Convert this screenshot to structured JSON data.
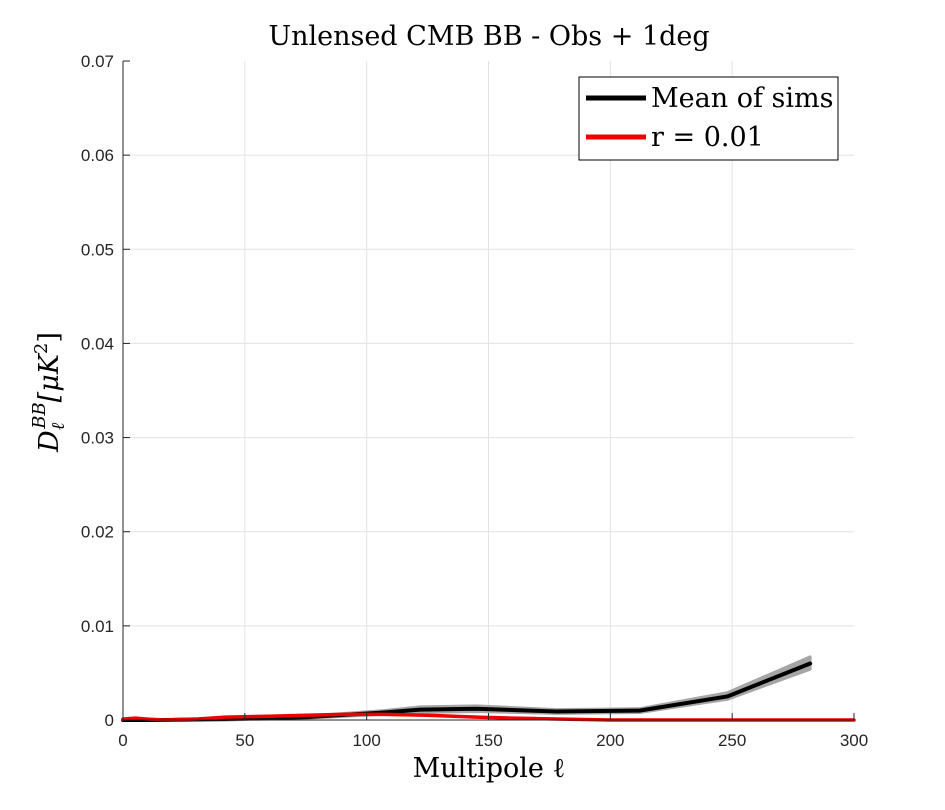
{
  "chart_data": {
    "type": "line",
    "title": "Unlensed CMB BB - Obs + 1deg",
    "xlabel": "Multipole ℓ",
    "ylabel": {
      "main": "D",
      "superscript": "BB",
      "subscript": "ℓ",
      "unit": "[μK",
      "unit_power": "2",
      "unit_close": "]"
    },
    "xlim": [
      0,
      300
    ],
    "ylim": [
      0,
      0.07
    ],
    "x_ticks": [
      0,
      50,
      100,
      150,
      200,
      250,
      300
    ],
    "x_tick_labels": [
      "0",
      "50",
      "100",
      "150",
      "200",
      "250",
      "300"
    ],
    "y_ticks": [
      0,
      0.01,
      0.02,
      0.03,
      0.04,
      0.05,
      0.06,
      0.07
    ],
    "y_tick_labels": [
      "0",
      "0.01",
      "0.02",
      "0.03",
      "0.04",
      "0.05",
      "0.06",
      "0.07"
    ],
    "grid": true,
    "legend_position": "top-right",
    "series": [
      {
        "name": "Mean of sims",
        "color": "#000000",
        "band_color": "#a6a6a6",
        "x": [
          0,
          5,
          17,
          42,
          75,
          107,
          122,
          145,
          178,
          212,
          248,
          282
        ],
        "y": [
          0.0,
          0.0,
          0.0,
          0.0001,
          0.0003,
          0.0008,
          0.0011,
          0.0012,
          0.0009,
          0.001,
          0.0025,
          0.006
        ],
        "band_lower": [
          0.0,
          0.0,
          0.0,
          0.0,
          0.0002,
          0.0006,
          0.0008,
          0.0009,
          0.0007,
          0.0008,
          0.0022,
          0.0054
        ],
        "band_upper": [
          0.0,
          0.0,
          0.0,
          0.0002,
          0.0004,
          0.001,
          0.0014,
          0.0015,
          0.0011,
          0.0012,
          0.0029,
          0.0067
        ]
      },
      {
        "name": "r = 0.01",
        "color": "#ee0000",
        "x": [
          0,
          5,
          10,
          17,
          30,
          42,
          60,
          75,
          90,
          107,
          125,
          145,
          160,
          178,
          200,
          212,
          230,
          248,
          265,
          282,
          300
        ],
        "y": [
          0.0001,
          0.0002,
          0.0001,
          0.0,
          0.0001,
          0.0003,
          0.0004,
          0.0005,
          0.0006,
          0.0006,
          0.0005,
          0.0003,
          0.0002,
          0.0001,
          0.0,
          0.0,
          0.0,
          0.0,
          0.0,
          0.0,
          0.0
        ]
      }
    ]
  }
}
